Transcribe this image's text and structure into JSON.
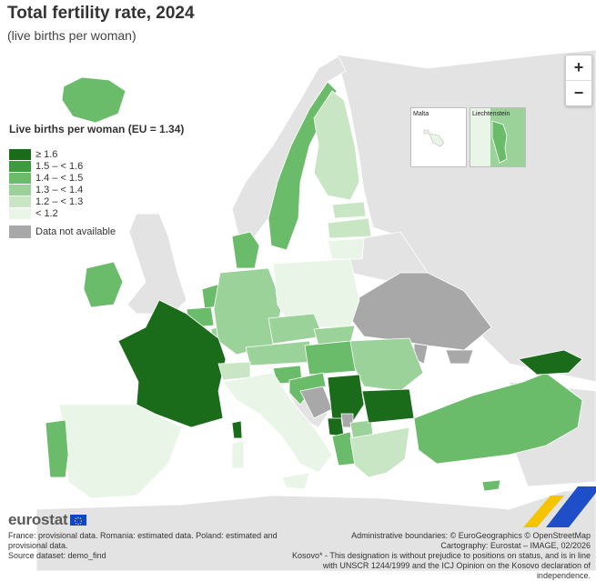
{
  "title": "Total fertility rate, 2024",
  "subtitle": "(live births per woman)",
  "zoom": {
    "in_label": "+",
    "out_label": "−"
  },
  "legend": {
    "title": "Live births per woman (EU = 1.34)",
    "items": [
      {
        "label": "≥ 1.6",
        "color": "#1a6b1a"
      },
      {
        "label": "1.5 – < 1.6",
        "color": "#3e9a3e"
      },
      {
        "label": "1.4 – < 1.5",
        "color": "#6abc6a"
      },
      {
        "label": "1.3 – < 1.4",
        "color": "#9ad29a"
      },
      {
        "label": "1.2 – < 1.3",
        "color": "#c8e6c4"
      },
      {
        "label": "< 1.2",
        "color": "#e9f5e7"
      }
    ],
    "na": {
      "label": "Data not available",
      "color": "#a8a8a8"
    }
  },
  "insets": {
    "malta": "Malta",
    "liechtenstein": "Liechtenstein"
  },
  "colors": {
    "sea": "#ffffff",
    "non_eu_land": "#e3e3e3",
    "border": "#ffffff"
  },
  "logo": {
    "text": "eurostat"
  },
  "footer": {
    "note1": "France: provisional data. Romania: estimated data. Poland: estimated and provisional data.",
    "source": "Source dataset: demo_find",
    "boundaries": "Administrative boundaries: © EuroGeographics © OpenStreetMap",
    "cartography": "Cartography: Eurostat – IMAGE, 02/2026",
    "kosovo": "Kosovo* - This designation is without prejudice to positions on status, and is in line with UNSCR 1244/1999 and the ICJ Opinion on the Kosovo declaration of independence."
  }
}
